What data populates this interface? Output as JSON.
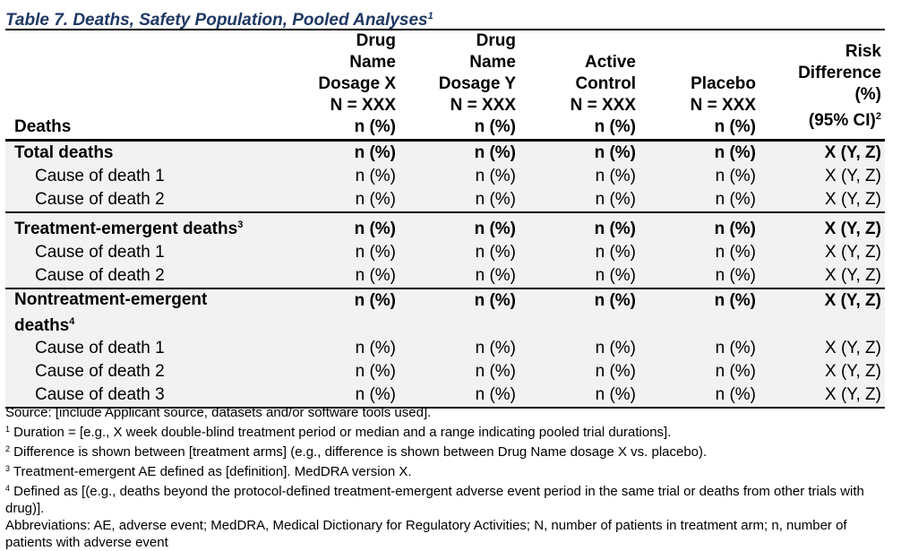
{
  "title": {
    "text": "Table 7. Deaths, Safety Population, Pooled Analyses",
    "sup": "1"
  },
  "header": {
    "col0": "Deaths",
    "col1": [
      "Drug",
      "Name",
      "Dosage X",
      "N = XXX",
      "n (%)"
    ],
    "col2": [
      "Drug",
      "Name",
      "Dosage Y",
      "N = XXX",
      "n (%)"
    ],
    "col3": [
      "Active",
      "Control",
      "N = XXX",
      "n (%)"
    ],
    "col4": [
      "Placebo",
      "N = XXX",
      "n (%)"
    ],
    "col5": [
      "Risk",
      "Difference",
      "(%)",
      "(95% CI)"
    ],
    "col5_sup": "2"
  },
  "groups": [
    {
      "label": "Total deaths",
      "sup": "",
      "values": [
        "n (%)",
        "n (%)",
        "n (%)",
        "n (%)",
        "X (Y, Z)"
      ],
      "rows": [
        {
          "label": "Cause of death 1",
          "values": [
            "n (%)",
            "n (%)",
            "n (%)",
            "n (%)",
            "X (Y, Z)"
          ]
        },
        {
          "label": "Cause of death 2",
          "values": [
            "n (%)",
            "n (%)",
            "n (%)",
            "n (%)",
            "X (Y, Z)"
          ]
        }
      ]
    },
    {
      "label": "Treatment-emergent deaths",
      "sup": "3",
      "values": [
        "n (%)",
        "n (%)",
        "n (%)",
        "n (%)",
        "X (Y, Z)"
      ],
      "rows": [
        {
          "label": "Cause of death 1",
          "values": [
            "n (%)",
            "n (%)",
            "n (%)",
            "n (%)",
            "X (Y, Z)"
          ]
        },
        {
          "label": "Cause of death 2",
          "values": [
            "n (%)",
            "n (%)",
            "n (%)",
            "n (%)",
            "X (Y, Z)"
          ]
        }
      ]
    },
    {
      "label_lines": [
        "Nontreatment-emergent",
        "deaths"
      ],
      "sup": "4",
      "values": [
        "n (%)",
        "n (%)",
        "n (%)",
        "n (%)",
        "X (Y, Z)"
      ],
      "rows": [
        {
          "label": "Cause of death 1",
          "values": [
            "n (%)",
            "n (%)",
            "n (%)",
            "n (%)",
            "X (Y, Z)"
          ]
        },
        {
          "label": "Cause of death 2",
          "values": [
            "n (%)",
            "n (%)",
            "n (%)",
            "n (%)",
            "X (Y, Z)"
          ]
        },
        {
          "label": "Cause of death 3",
          "values": [
            "n (%)",
            "n (%)",
            "n (%)",
            "n (%)",
            "X (Y, Z)"
          ]
        }
      ]
    }
  ],
  "notes": {
    "source": "Source: [include Applicant source, datasets and/or software tools used].",
    "fn1": {
      "mark": "1",
      "text": " Duration = [e.g., X week double-blind treatment period or median and a range indicating pooled trial durations]."
    },
    "fn2": {
      "mark": "2",
      "text": " Difference is shown between [treatment arms] (e.g., difference is shown between Drug Name dosage X vs. placebo)."
    },
    "fn3": {
      "mark": "3",
      "text": " Treatment-emergent AE defined as [definition]. MedDRA version X."
    },
    "fn4": {
      "mark": "4",
      "text": " Defined as [(e.g., deaths beyond the protocol-defined treatment-emergent adverse event period in the same trial or deaths from other trials with drug)]."
    },
    "abbrev": "Abbreviations: AE, adverse event; MedDRA, Medical Dictionary for Regulatory Activities; N, number of patients in treatment arm; n, number of patients with adverse event"
  }
}
